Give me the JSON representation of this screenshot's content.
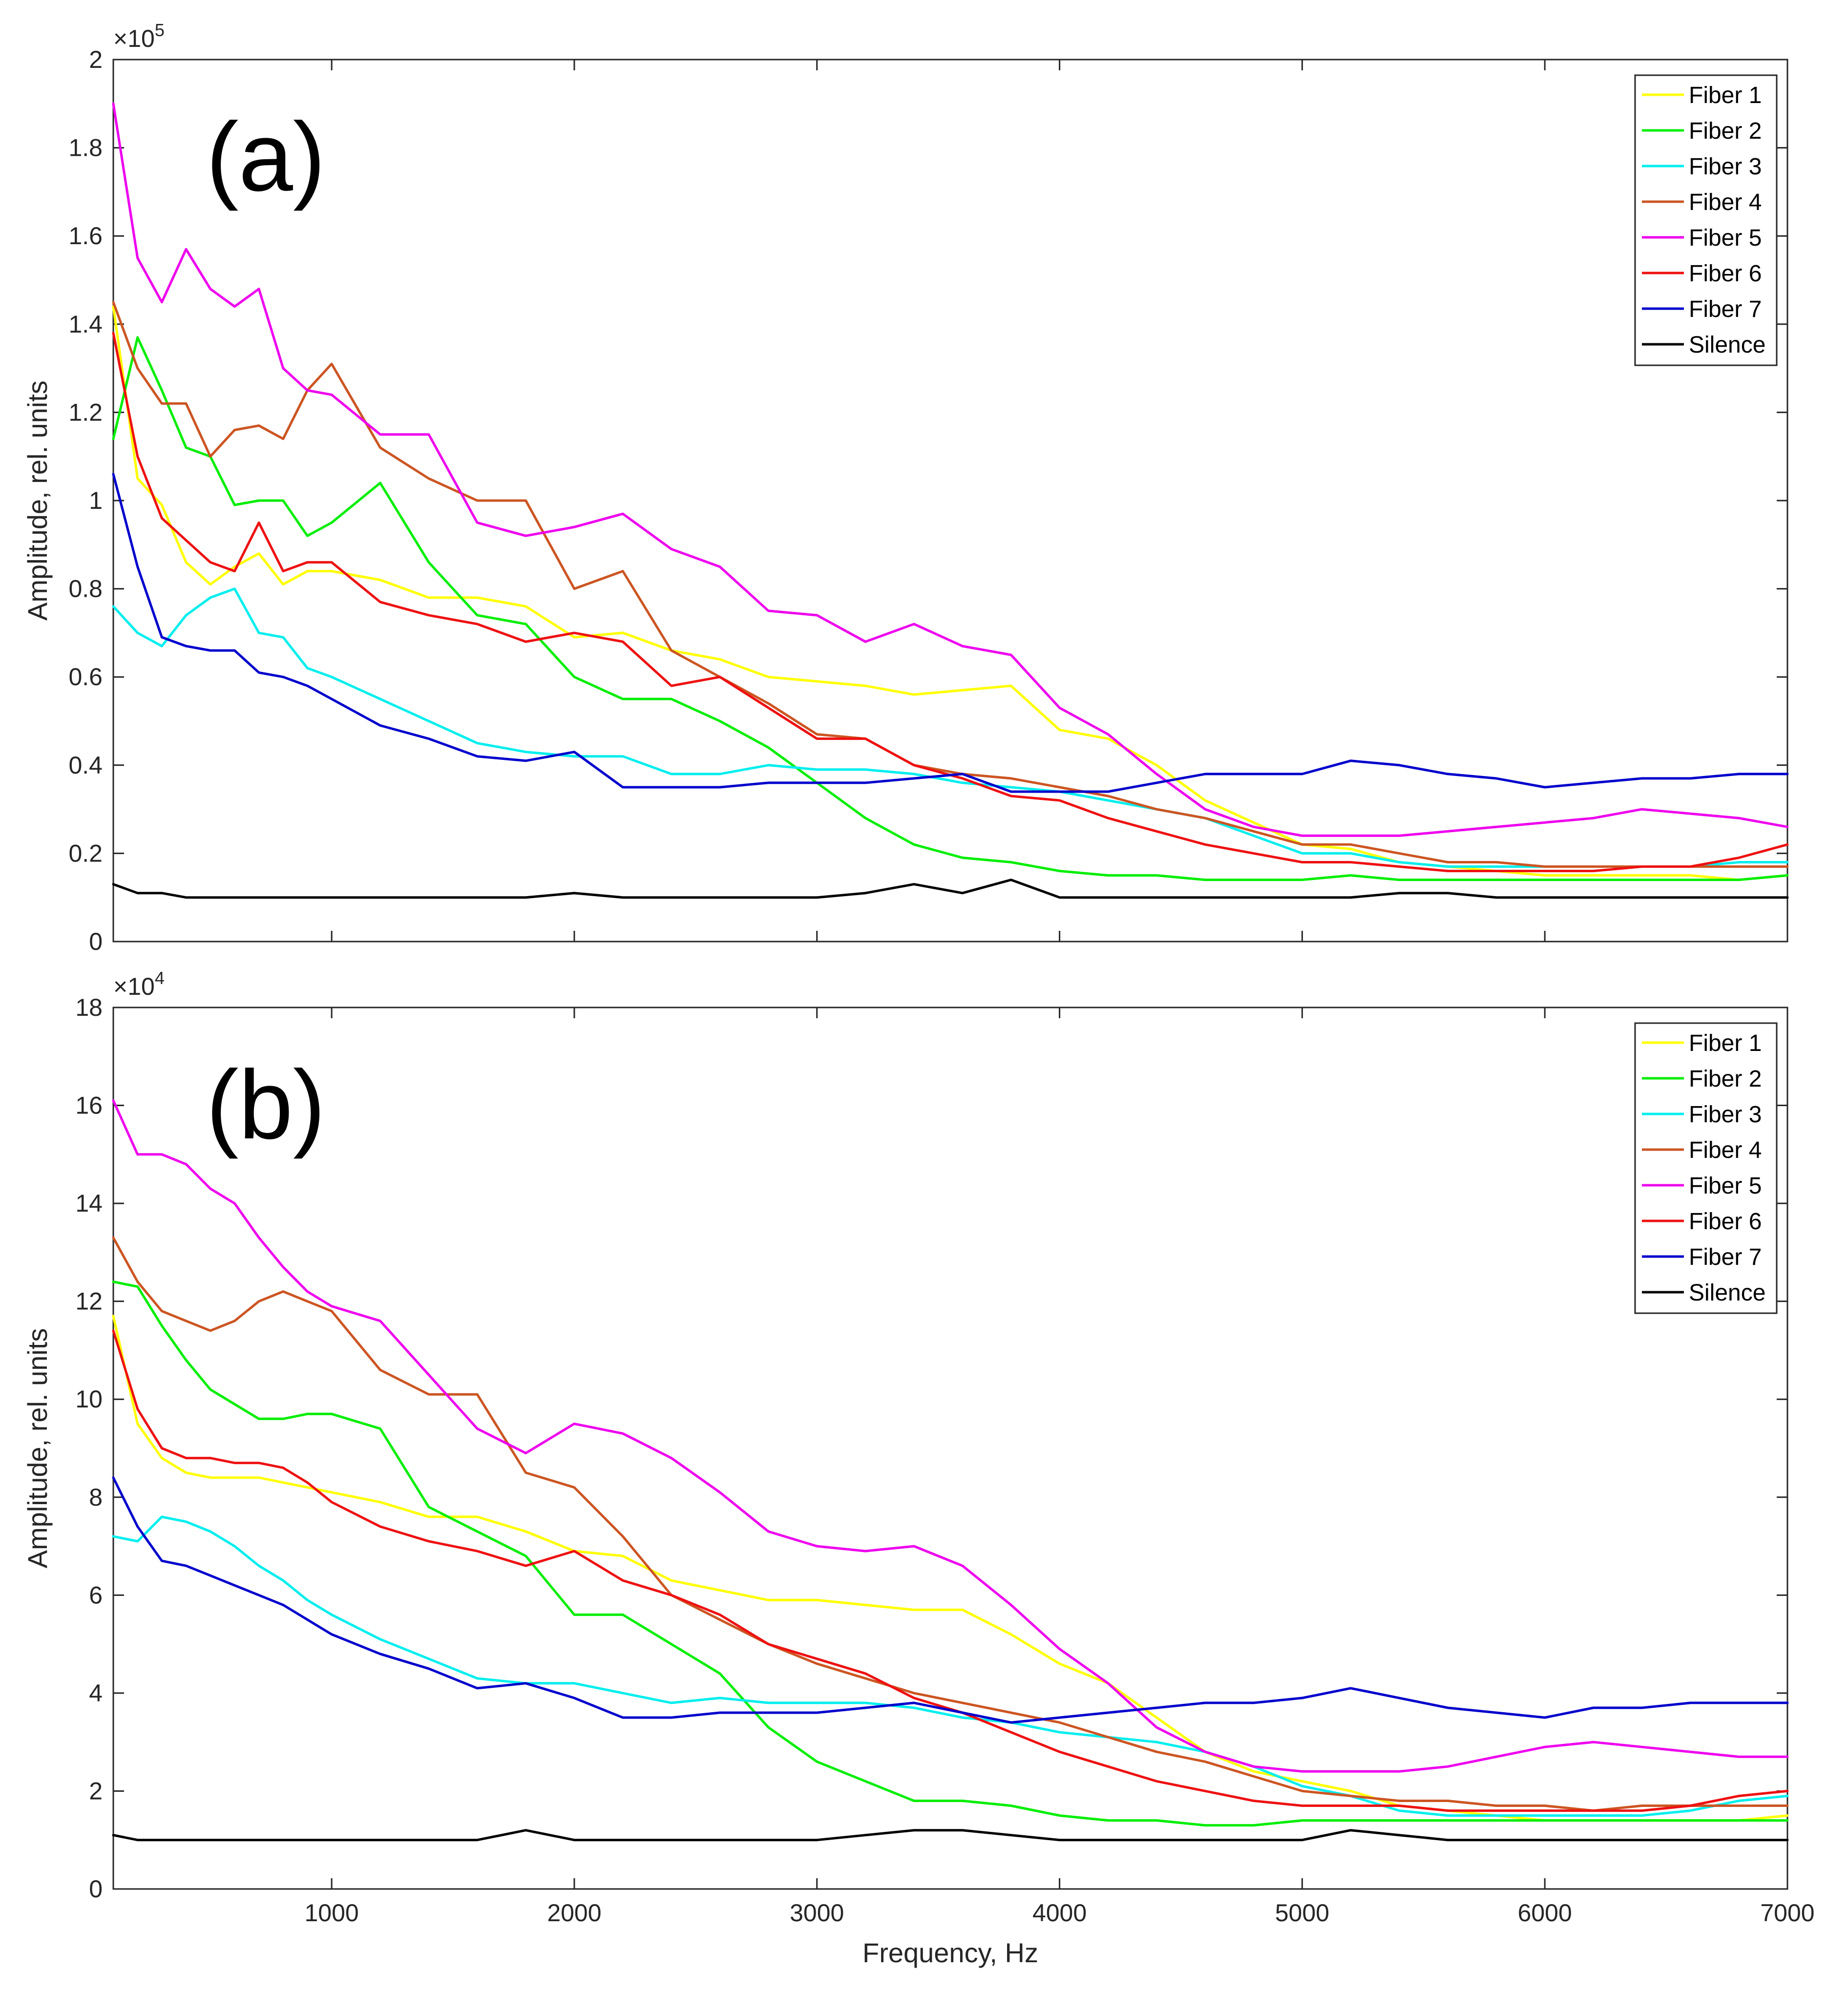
{
  "chart_data": [
    {
      "type": "line",
      "panel_label": "(a)",
      "exponent_base": "×10",
      "exponent_power": "5",
      "xlabel": "",
      "ylabel": "Amplitude, rel. units",
      "xlim": [
        100,
        7000
      ],
      "ylim": [
        0,
        2
      ],
      "xticks": [
        1000,
        2000,
        3000,
        4000,
        5000,
        6000,
        7000
      ],
      "xtick_labels": [
        "",
        "",
        "",
        "",
        "",
        "",
        ""
      ],
      "yticks": [
        0,
        0.2,
        0.4,
        0.6,
        0.8,
        1,
        1.2,
        1.4,
        1.6,
        1.8,
        2
      ],
      "ytick_labels": [
        "0",
        "0.2",
        "0.4",
        "0.6",
        "0.8",
        "1",
        "1.2",
        "1.4",
        "1.6",
        "1.8",
        "2"
      ],
      "legend_position": "top-right",
      "x": [
        100,
        200,
        300,
        400,
        500,
        600,
        700,
        800,
        900,
        1000,
        1200,
        1400,
        1600,
        1800,
        2000,
        2200,
        2400,
        2600,
        2800,
        3000,
        3200,
        3400,
        3600,
        3800,
        4000,
        4200,
        4400,
        4600,
        4800,
        5000,
        5200,
        5400,
        5600,
        5800,
        6000,
        6200,
        6400,
        6600,
        6800,
        7000
      ],
      "series": [
        {
          "name": "Fiber 1",
          "color": "#ffff00",
          "values": [
            1.44,
            1.05,
            0.99,
            0.86,
            0.81,
            0.85,
            0.88,
            0.81,
            0.84,
            0.84,
            0.82,
            0.78,
            0.78,
            0.76,
            0.69,
            0.7,
            0.66,
            0.64,
            0.6,
            0.59,
            0.58,
            0.56,
            0.57,
            0.58,
            0.48,
            0.46,
            0.4,
            0.32,
            0.27,
            0.22,
            0.21,
            0.18,
            0.17,
            0.16,
            0.15,
            0.15,
            0.15,
            0.15,
            0.14,
            0.15
          ]
        },
        {
          "name": "Fiber 2",
          "color": "#00ee00",
          "values": [
            1.14,
            1.37,
            1.25,
            1.12,
            1.1,
            0.99,
            1.0,
            1.0,
            0.92,
            0.95,
            1.04,
            0.86,
            0.74,
            0.72,
            0.6,
            0.55,
            0.55,
            0.5,
            0.44,
            0.36,
            0.28,
            0.22,
            0.19,
            0.18,
            0.16,
            0.15,
            0.15,
            0.14,
            0.14,
            0.14,
            0.15,
            0.14,
            0.14,
            0.14,
            0.14,
            0.14,
            0.14,
            0.14,
            0.14,
            0.15
          ]
        },
        {
          "name": "Fiber 3",
          "color": "#00eeee",
          "values": [
            0.76,
            0.7,
            0.67,
            0.74,
            0.78,
            0.8,
            0.7,
            0.69,
            0.62,
            0.6,
            0.55,
            0.5,
            0.45,
            0.43,
            0.42,
            0.42,
            0.38,
            0.38,
            0.4,
            0.39,
            0.39,
            0.38,
            0.36,
            0.35,
            0.34,
            0.32,
            0.3,
            0.28,
            0.24,
            0.2,
            0.2,
            0.18,
            0.17,
            0.17,
            0.17,
            0.17,
            0.17,
            0.17,
            0.18,
            0.18
          ]
        },
        {
          "name": "Fiber 4",
          "color": "#cc5522",
          "values": [
            1.45,
            1.3,
            1.22,
            1.22,
            1.1,
            1.16,
            1.17,
            1.14,
            1.25,
            1.31,
            1.12,
            1.05,
            1.0,
            1.0,
            0.8,
            0.84,
            0.66,
            0.6,
            0.54,
            0.47,
            0.46,
            0.4,
            0.38,
            0.37,
            0.35,
            0.33,
            0.3,
            0.28,
            0.25,
            0.22,
            0.22,
            0.2,
            0.18,
            0.18,
            0.17,
            0.17,
            0.17,
            0.17,
            0.17,
            0.17
          ]
        },
        {
          "name": "Fiber 5",
          "color": "#ee00ee",
          "values": [
            1.9,
            1.55,
            1.45,
            1.57,
            1.48,
            1.44,
            1.48,
            1.3,
            1.25,
            1.24,
            1.15,
            1.15,
            0.95,
            0.92,
            0.94,
            0.97,
            0.89,
            0.85,
            0.75,
            0.74,
            0.68,
            0.72,
            0.67,
            0.65,
            0.53,
            0.47,
            0.38,
            0.3,
            0.26,
            0.24,
            0.24,
            0.24,
            0.25,
            0.26,
            0.27,
            0.28,
            0.3,
            0.29,
            0.28,
            0.26
          ]
        },
        {
          "name": "Fiber 6",
          "color": "#ee1111",
          "values": [
            1.38,
            1.1,
            0.96,
            0.91,
            0.86,
            0.84,
            0.95,
            0.84,
            0.86,
            0.86,
            0.77,
            0.74,
            0.72,
            0.68,
            0.7,
            0.68,
            0.58,
            0.6,
            0.53,
            0.46,
            0.46,
            0.4,
            0.37,
            0.33,
            0.32,
            0.28,
            0.25,
            0.22,
            0.2,
            0.18,
            0.18,
            0.17,
            0.16,
            0.16,
            0.16,
            0.16,
            0.17,
            0.17,
            0.19,
            0.22
          ]
        },
        {
          "name": "Fiber 7",
          "color": "#0000cc",
          "values": [
            1.06,
            0.85,
            0.69,
            0.67,
            0.66,
            0.66,
            0.61,
            0.6,
            0.58,
            0.55,
            0.49,
            0.46,
            0.42,
            0.41,
            0.43,
            0.35,
            0.35,
            0.35,
            0.36,
            0.36,
            0.36,
            0.37,
            0.38,
            0.34,
            0.34,
            0.34,
            0.36,
            0.38,
            0.38,
            0.38,
            0.41,
            0.4,
            0.38,
            0.37,
            0.35,
            0.36,
            0.37,
            0.37,
            0.38,
            0.38
          ]
        },
        {
          "name": "Silence",
          "color": "#000000",
          "values": [
            0.13,
            0.11,
            0.11,
            0.1,
            0.1,
            0.1,
            0.1,
            0.1,
            0.1,
            0.1,
            0.1,
            0.1,
            0.1,
            0.1,
            0.11,
            0.1,
            0.1,
            0.1,
            0.1,
            0.1,
            0.11,
            0.13,
            0.11,
            0.14,
            0.1,
            0.1,
            0.1,
            0.1,
            0.1,
            0.1,
            0.1,
            0.11,
            0.11,
            0.1,
            0.1,
            0.1,
            0.1,
            0.1,
            0.1,
            0.1
          ]
        }
      ]
    },
    {
      "type": "line",
      "panel_label": "(b)",
      "exponent_base": "×10",
      "exponent_power": "4",
      "xlabel": "Frequency, Hz",
      "ylabel": "Amplitude, rel. units",
      "xlim": [
        100,
        7000
      ],
      "ylim": [
        0,
        18
      ],
      "xticks": [
        1000,
        2000,
        3000,
        4000,
        5000,
        6000,
        7000
      ],
      "xtick_labels": [
        "1000",
        "2000",
        "3000",
        "4000",
        "5000",
        "6000",
        "7000"
      ],
      "yticks": [
        0,
        2,
        4,
        6,
        8,
        10,
        12,
        14,
        16,
        18
      ],
      "ytick_labels": [
        "0",
        "2",
        "4",
        "6",
        "8",
        "10",
        "12",
        "14",
        "16",
        "18"
      ],
      "legend_position": "top-right",
      "x": [
        100,
        200,
        300,
        400,
        500,
        600,
        700,
        800,
        900,
        1000,
        1200,
        1400,
        1600,
        1800,
        2000,
        2200,
        2400,
        2600,
        2800,
        3000,
        3200,
        3400,
        3600,
        3800,
        4000,
        4200,
        4400,
        4600,
        4800,
        5000,
        5200,
        5400,
        5600,
        5800,
        6000,
        6200,
        6400,
        6600,
        6800,
        7000
      ],
      "series": [
        {
          "name": "Fiber 1",
          "color": "#ffff00",
          "values": [
            11.7,
            9.5,
            8.8,
            8.5,
            8.4,
            8.4,
            8.4,
            8.3,
            8.2,
            8.1,
            7.9,
            7.6,
            7.6,
            7.3,
            6.9,
            6.8,
            6.3,
            6.1,
            5.9,
            5.9,
            5.8,
            5.7,
            5.7,
            5.2,
            4.6,
            4.2,
            3.5,
            2.8,
            2.4,
            2.2,
            2.0,
            1.7,
            1.6,
            1.5,
            1.4,
            1.4,
            1.4,
            1.4,
            1.4,
            1.5
          ]
        },
        {
          "name": "Fiber 2",
          "color": "#00ee00",
          "values": [
            12.4,
            12.3,
            11.5,
            10.8,
            10.2,
            9.9,
            9.6,
            9.6,
            9.7,
            9.7,
            9.4,
            7.8,
            7.3,
            6.8,
            5.6,
            5.6,
            5.0,
            4.4,
            3.3,
            2.6,
            2.2,
            1.8,
            1.8,
            1.7,
            1.5,
            1.4,
            1.4,
            1.3,
            1.3,
            1.4,
            1.4,
            1.4,
            1.4,
            1.4,
            1.4,
            1.4,
            1.4,
            1.4,
            1.4,
            1.4
          ]
        },
        {
          "name": "Fiber 3",
          "color": "#00eeee",
          "values": [
            7.2,
            7.1,
            7.6,
            7.5,
            7.3,
            7.0,
            6.6,
            6.3,
            5.9,
            5.6,
            5.1,
            4.7,
            4.3,
            4.2,
            4.2,
            4.0,
            3.8,
            3.9,
            3.8,
            3.8,
            3.8,
            3.7,
            3.5,
            3.4,
            3.2,
            3.1,
            3.0,
            2.8,
            2.5,
            2.1,
            1.9,
            1.6,
            1.5,
            1.5,
            1.5,
            1.5,
            1.5,
            1.6,
            1.8,
            1.9
          ]
        },
        {
          "name": "Fiber 4",
          "color": "#cc5522",
          "values": [
            13.3,
            12.4,
            11.8,
            11.6,
            11.4,
            11.6,
            12.0,
            12.2,
            12.0,
            11.8,
            10.6,
            10.1,
            10.1,
            8.5,
            8.2,
            7.2,
            6.0,
            5.5,
            5.0,
            4.6,
            4.3,
            4.0,
            3.8,
            3.6,
            3.4,
            3.1,
            2.8,
            2.6,
            2.3,
            2.0,
            1.9,
            1.8,
            1.8,
            1.7,
            1.7,
            1.6,
            1.7,
            1.7,
            1.7,
            1.7
          ]
        },
        {
          "name": "Fiber 5",
          "color": "#ee00ee",
          "values": [
            16.1,
            15.0,
            15.0,
            14.8,
            14.3,
            14.0,
            13.3,
            12.7,
            12.2,
            11.9,
            11.6,
            10.5,
            9.4,
            8.9,
            9.5,
            9.3,
            8.8,
            8.1,
            7.3,
            7.0,
            6.9,
            7.0,
            6.6,
            5.8,
            4.9,
            4.2,
            3.3,
            2.8,
            2.5,
            2.4,
            2.4,
            2.4,
            2.5,
            2.7,
            2.9,
            3.0,
            2.9,
            2.8,
            2.7,
            2.7
          ]
        },
        {
          "name": "Fiber 6",
          "color": "#ee1111",
          "values": [
            11.4,
            9.8,
            9.0,
            8.8,
            8.8,
            8.7,
            8.7,
            8.6,
            8.3,
            7.9,
            7.4,
            7.1,
            6.9,
            6.6,
            6.9,
            6.3,
            6.0,
            5.6,
            5.0,
            4.7,
            4.4,
            3.9,
            3.6,
            3.2,
            2.8,
            2.5,
            2.2,
            2.0,
            1.8,
            1.7,
            1.7,
            1.7,
            1.6,
            1.6,
            1.6,
            1.6,
            1.6,
            1.7,
            1.9,
            2.0
          ]
        },
        {
          "name": "Fiber 7",
          "color": "#0000cc",
          "values": [
            8.4,
            7.4,
            6.7,
            6.6,
            6.4,
            6.2,
            6.0,
            5.8,
            5.5,
            5.2,
            4.8,
            4.5,
            4.1,
            4.2,
            3.9,
            3.5,
            3.5,
            3.6,
            3.6,
            3.6,
            3.7,
            3.8,
            3.6,
            3.4,
            3.5,
            3.6,
            3.7,
            3.8,
            3.8,
            3.9,
            4.1,
            3.9,
            3.7,
            3.6,
            3.5,
            3.7,
            3.7,
            3.8,
            3.8,
            3.8
          ]
        },
        {
          "name": "Silence",
          "color": "#000000",
          "values": [
            1.1,
            1.0,
            1.0,
            1.0,
            1.0,
            1.0,
            1.0,
            1.0,
            1.0,
            1.0,
            1.0,
            1.0,
            1.0,
            1.2,
            1.0,
            1.0,
            1.0,
            1.0,
            1.0,
            1.0,
            1.1,
            1.2,
            1.2,
            1.1,
            1.0,
            1.0,
            1.0,
            1.0,
            1.0,
            1.0,
            1.2,
            1.1,
            1.0,
            1.0,
            1.0,
            1.0,
            1.0,
            1.0,
            1.0,
            1.0
          ]
        }
      ]
    }
  ]
}
